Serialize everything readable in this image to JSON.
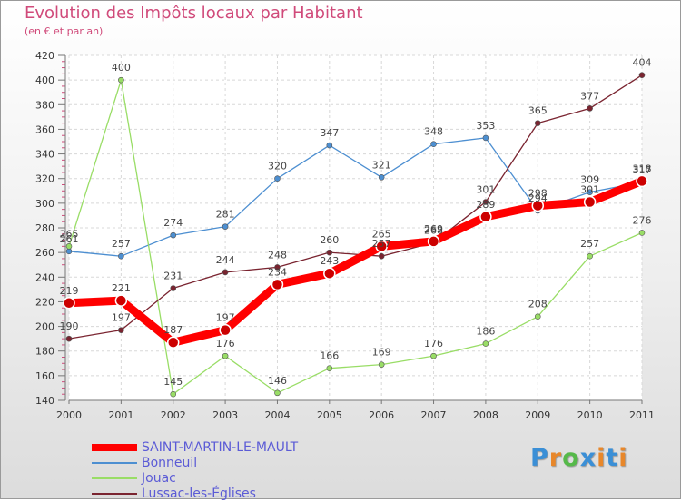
{
  "chart_data": {
    "type": "line",
    "title": "Evolution des Impôts locaux par Habitant",
    "subtitle": "(en € et par an)",
    "xlabel": "",
    "ylabel": "",
    "x": [
      "2000",
      "2001",
      "2002",
      "2003",
      "2004",
      "2005",
      "2006",
      "2007",
      "2008",
      "2009",
      "2010",
      "2011"
    ],
    "ylim": [
      140,
      420
    ],
    "yticks": [
      140,
      160,
      180,
      200,
      220,
      240,
      260,
      280,
      300,
      320,
      340,
      360,
      380,
      400,
      420
    ],
    "grid": true,
    "legend_position": "bottom-left",
    "series": [
      {
        "name": "SAINT-MARTIN-LE-MAULT",
        "color": "#ff0000",
        "values": [
          219,
          221,
          187,
          197,
          234,
          243,
          265,
          269,
          289,
          298,
          301,
          318
        ]
      },
      {
        "name": "Bonneuil",
        "color": "#4d8fd1",
        "values": [
          261,
          257,
          274,
          281,
          320,
          347,
          321,
          348,
          353,
          294,
          309,
          317
        ]
      },
      {
        "name": "Jouac",
        "color": "#99dd66",
        "values": [
          265,
          400,
          145,
          176,
          146,
          166,
          169,
          176,
          186,
          208,
          257,
          276
        ]
      },
      {
        "name": "Lussac-les-Églises",
        "color": "#7a2430",
        "values": [
          190,
          197,
          231,
          244,
          248,
          260,
          257,
          268,
          301,
          365,
          377,
          404
        ]
      }
    ]
  },
  "logo": {
    "text": "Proxiti"
  }
}
